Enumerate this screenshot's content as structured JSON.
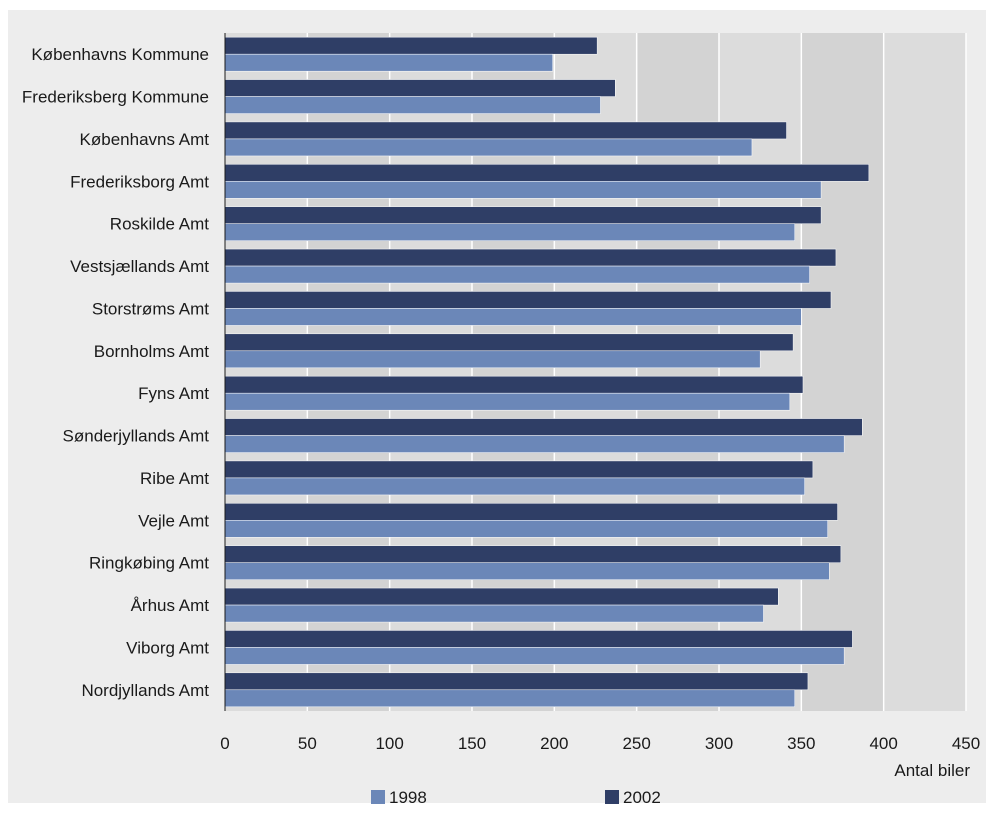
{
  "chart_data": {
    "type": "bar",
    "orientation": "horizontal",
    "categories": [
      "Københavns Kommune",
      "Frederiksberg Kommune",
      "Københavns Amt",
      "Frederiksborg Amt",
      "Roskilde Amt",
      "Vestsjællands Amt",
      "Storstrøms Amt",
      "Bornholms Amt",
      "Fyns Amt",
      "Sønderjyllands Amt",
      "Ribe Amt",
      "Vejle Amt",
      "Ringkøbing Amt",
      "Århus Amt",
      "Viborg Amt",
      "Nordjyllands Amt"
    ],
    "series": [
      {
        "name": "2002",
        "color": "#2f3e66",
        "values": [
          226,
          237,
          341,
          391,
          362,
          371,
          368,
          345,
          351,
          387,
          357,
          372,
          374,
          336,
          381,
          354
        ]
      },
      {
        "name": "1998",
        "color": "#6b87b8",
        "values": [
          199,
          228,
          320,
          362,
          346,
          355,
          350,
          325,
          343,
          376,
          352,
          366,
          367,
          327,
          376,
          346
        ]
      }
    ],
    "xlabel": "Antal biler",
    "ylabel": "",
    "title": "",
    "xlim": [
      0,
      450
    ],
    "xticks": [
      "0",
      "50",
      "100",
      "150",
      "200",
      "250",
      "300",
      "350",
      "400",
      "450"
    ],
    "grid": true,
    "legend": {
      "position": "bottom",
      "entries": [
        {
          "label": "1998",
          "color": "#6b87b8"
        },
        {
          "label": "2002",
          "color": "#2f3e66"
        }
      ]
    },
    "colors": {
      "plot_background": "#dcdcdc",
      "frame_background": "#ededed",
      "gridline": "#ffffff"
    }
  }
}
